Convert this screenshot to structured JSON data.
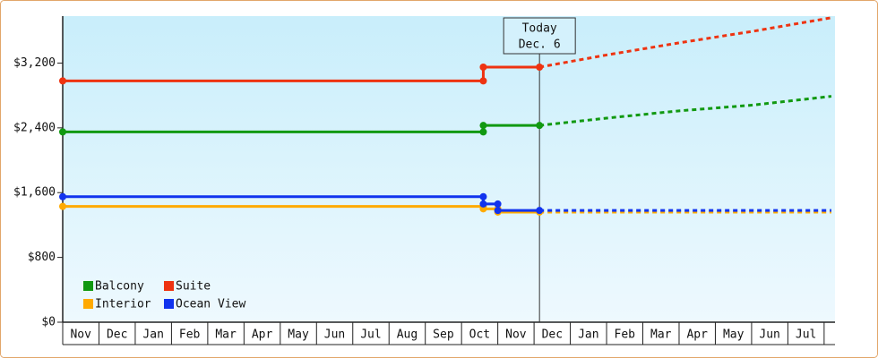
{
  "chart_data": {
    "type": "line",
    "ylim": [
      0,
      3780
    ],
    "yticks": [
      {
        "value": 0,
        "label": "$0"
      },
      {
        "value": 800,
        "label": "$800"
      },
      {
        "value": 1600,
        "label": "$1,600"
      },
      {
        "value": 2400,
        "label": "$2,400"
      },
      {
        "value": 3200,
        "label": "$3,200"
      }
    ],
    "xlim": [
      0,
      21.3
    ],
    "xticks": [
      {
        "value": 0,
        "label": "Nov"
      },
      {
        "value": 1,
        "label": "Dec"
      },
      {
        "value": 2,
        "label": "Jan"
      },
      {
        "value": 3,
        "label": "Feb"
      },
      {
        "value": 4,
        "label": "Mar"
      },
      {
        "value": 5,
        "label": "Apr"
      },
      {
        "value": 6,
        "label": "May"
      },
      {
        "value": 7,
        "label": "Jun"
      },
      {
        "value": 8,
        "label": "Jul"
      },
      {
        "value": 9,
        "label": "Aug"
      },
      {
        "value": 10,
        "label": "Sep"
      },
      {
        "value": 11,
        "label": "Oct"
      },
      {
        "value": 12,
        "label": "Nov"
      },
      {
        "value": 13,
        "label": "Dec"
      },
      {
        "value": 14,
        "label": "Jan"
      },
      {
        "value": 15,
        "label": "Feb"
      },
      {
        "value": 16,
        "label": "Mar"
      },
      {
        "value": 17,
        "label": "Apr"
      },
      {
        "value": 18,
        "label": "May"
      },
      {
        "value": 19,
        "label": "Jun"
      },
      {
        "value": 20,
        "label": "Jul"
      }
    ],
    "annotation": {
      "x": 13.15,
      "lines": [
        "Today",
        "Dec. 6"
      ]
    },
    "legend": "lower left",
    "series": [
      {
        "name": "Balcony",
        "color": "#119911",
        "x": [
          0,
          11.6,
          11.6,
          13.15
        ],
        "values": [
          2350,
          2350,
          2430,
          2430
        ],
        "forecast": {
          "x": [
            13.15,
            15,
            17,
            19,
            21.2
          ],
          "values": [
            2430,
            2520,
            2610,
            2680,
            2790
          ]
        }
      },
      {
        "name": "Suite",
        "color": "#ee3311",
        "x": [
          0,
          11.6,
          11.6,
          13.15
        ],
        "values": [
          2980,
          2980,
          3150,
          3150
        ],
        "forecast": {
          "x": [
            13.15,
            15,
            17,
            19,
            21.2
          ],
          "values": [
            3150,
            3300,
            3450,
            3590,
            3760
          ]
        }
      },
      {
        "name": "Interior",
        "color": "#ffaa00",
        "x": [
          0,
          11.6,
          11.6,
          12.0,
          12.0,
          13.15
        ],
        "values": [
          1430,
          1430,
          1400,
          1400,
          1360,
          1360
        ],
        "forecast": {
          "x": [
            13.15,
            21.2
          ],
          "values": [
            1360,
            1360
          ]
        }
      },
      {
        "name": "Ocean View",
        "color": "#1133ee",
        "x": [
          0,
          11.6,
          11.6,
          12.0,
          12.0,
          13.15
        ],
        "values": [
          1550,
          1550,
          1460,
          1460,
          1380,
          1380
        ],
        "forecast": {
          "x": [
            13.15,
            21.2
          ],
          "values": [
            1380,
            1380
          ]
        }
      }
    ]
  }
}
